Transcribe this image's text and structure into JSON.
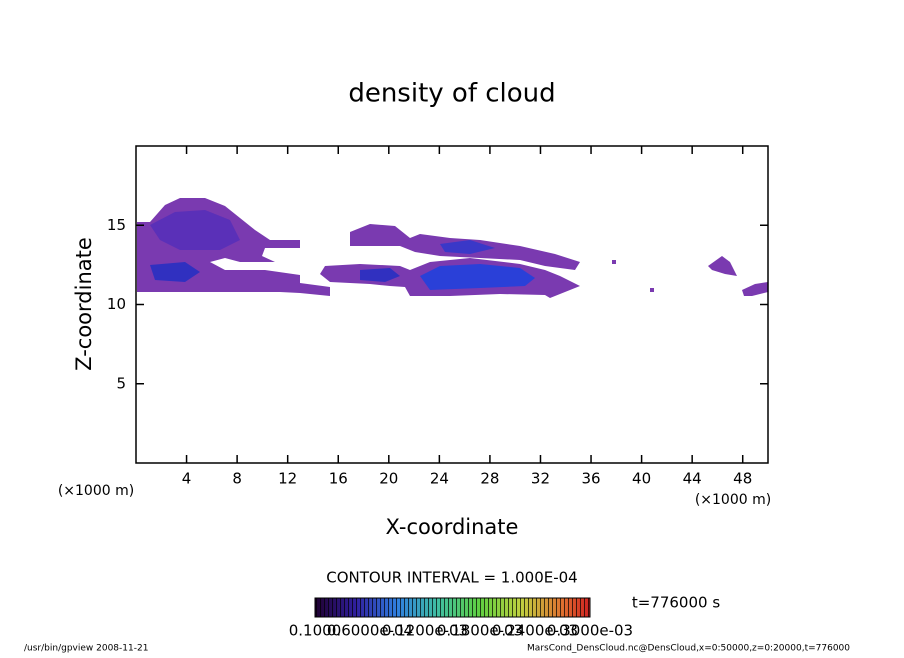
{
  "chart_data": {
    "type": "contour",
    "title": "density of cloud",
    "xlabel": "X-coordinate",
    "ylabel": "Z-coordinate",
    "xunit": "(×1000 m)",
    "yunit": "(×1000 m)",
    "xlim": [
      0,
      50
    ],
    "xticks": [
      4,
      8,
      12,
      16,
      20,
      24,
      28,
      32,
      36,
      40,
      44,
      48
    ],
    "ylim": [
      0,
      20
    ],
    "yticks": [
      5,
      10,
      15
    ],
    "contour_interval": "CONTOUR INTERVAL = 1.000E-04",
    "time_label": "t=776000 s",
    "colorbar_labels": [
      "0.1000",
      "0.6000e-04",
      "0.1200e-03",
      "0.1800e-03",
      "0.2400e-03",
      "0.3000e-03"
    ],
    "footer_left": "/usr/bin/gpview  2008-11-21",
    "footer_right": "MarsCond_DensCloud.nc@DensCloud,x=0:50000,z=0:20000,t=776000"
  }
}
